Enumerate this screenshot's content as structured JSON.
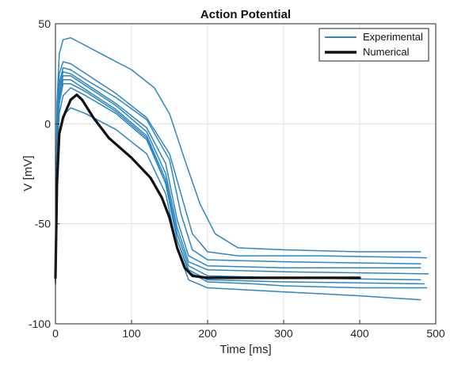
{
  "chart_data": {
    "type": "line",
    "title": "Action Potential",
    "xlabel": "Time [ms]",
    "ylabel": "V [mV]",
    "xlim": [
      0,
      500
    ],
    "ylim": [
      -100,
      50
    ],
    "xticks": [
      0,
      100,
      200,
      300,
      400,
      500
    ],
    "yticks": [
      -100,
      -50,
      0,
      50
    ],
    "xtick_labels": [
      "0",
      "100",
      "200",
      "300",
      "400",
      "500"
    ],
    "ytick_labels": [
      "-100",
      "-50",
      "0",
      "50"
    ],
    "grid": true,
    "legend_position": "top-right",
    "legend": [
      "Experimental",
      "Numerical"
    ],
    "colors": {
      "experimental": "#2E86C1",
      "numerical": "#111111"
    },
    "series": [
      {
        "name": "Experimental",
        "group": "experimental",
        "values": [
          [
            0,
            -78
          ],
          [
            2,
            10
          ],
          [
            5,
            35
          ],
          [
            10,
            42
          ],
          [
            20,
            43
          ],
          [
            30,
            41
          ],
          [
            60,
            35
          ],
          [
            100,
            27
          ],
          [
            130,
            18
          ],
          [
            150,
            5
          ],
          [
            170,
            -18
          ],
          [
            190,
            -40
          ],
          [
            210,
            -55
          ],
          [
            240,
            -62
          ],
          [
            300,
            -63
          ],
          [
            400,
            -64
          ],
          [
            480,
            -64
          ]
        ]
      },
      {
        "name": "",
        "group": "experimental",
        "values": [
          [
            0,
            -80
          ],
          [
            2,
            0
          ],
          [
            5,
            25
          ],
          [
            10,
            31
          ],
          [
            20,
            30
          ],
          [
            40,
            25
          ],
          [
            80,
            15
          ],
          [
            120,
            3
          ],
          [
            150,
            -15
          ],
          [
            165,
            -35
          ],
          [
            180,
            -55
          ],
          [
            200,
            -64
          ],
          [
            240,
            -66
          ],
          [
            350,
            -66
          ],
          [
            488,
            -67
          ]
        ]
      },
      {
        "name": "",
        "group": "experimental",
        "values": [
          [
            0,
            -78
          ],
          [
            2,
            -5
          ],
          [
            5,
            20
          ],
          [
            10,
            28
          ],
          [
            20,
            27
          ],
          [
            40,
            22
          ],
          [
            80,
            13
          ],
          [
            120,
            2
          ],
          [
            150,
            -18
          ],
          [
            165,
            -45
          ],
          [
            180,
            -63
          ],
          [
            200,
            -68
          ],
          [
            300,
            -69
          ],
          [
            480,
            -70
          ]
        ]
      },
      {
        "name": "",
        "group": "experimental",
        "values": [
          [
            0,
            -79
          ],
          [
            2,
            -5
          ],
          [
            5,
            18
          ],
          [
            10,
            26
          ],
          [
            20,
            25
          ],
          [
            40,
            20
          ],
          [
            80,
            10
          ],
          [
            120,
            -2
          ],
          [
            145,
            -20
          ],
          [
            160,
            -48
          ],
          [
            175,
            -66
          ],
          [
            200,
            -71
          ],
          [
            300,
            -72
          ],
          [
            480,
            -72
          ]
        ]
      },
      {
        "name": "",
        "group": "experimental",
        "values": [
          [
            0,
            -77
          ],
          [
            2,
            -8
          ],
          [
            5,
            15
          ],
          [
            10,
            24
          ],
          [
            20,
            24
          ],
          [
            40,
            19
          ],
          [
            80,
            9
          ],
          [
            120,
            -4
          ],
          [
            145,
            -25
          ],
          [
            160,
            -52
          ],
          [
            175,
            -69
          ],
          [
            200,
            -73
          ],
          [
            300,
            -74
          ],
          [
            490,
            -75
          ]
        ]
      },
      {
        "name": "",
        "group": "experimental",
        "values": [
          [
            0,
            -78
          ],
          [
            2,
            -10
          ],
          [
            5,
            12
          ],
          [
            10,
            22
          ],
          [
            20,
            22
          ],
          [
            40,
            17
          ],
          [
            80,
            7
          ],
          [
            120,
            -6
          ],
          [
            145,
            -28
          ],
          [
            160,
            -55
          ],
          [
            175,
            -71
          ],
          [
            200,
            -76
          ],
          [
            300,
            -77
          ],
          [
            480,
            -78
          ]
        ]
      },
      {
        "name": "",
        "group": "experimental",
        "values": [
          [
            0,
            -80
          ],
          [
            2,
            -15
          ],
          [
            5,
            5
          ],
          [
            10,
            14
          ],
          [
            20,
            18
          ],
          [
            40,
            14
          ],
          [
            80,
            5
          ],
          [
            120,
            -8
          ],
          [
            145,
            -30
          ],
          [
            160,
            -58
          ],
          [
            175,
            -73
          ],
          [
            200,
            -78
          ],
          [
            300,
            -79
          ],
          [
            485,
            -80
          ]
        ]
      },
      {
        "name": "",
        "group": "experimental",
        "values": [
          [
            0,
            -79
          ],
          [
            2,
            -20
          ],
          [
            5,
            -5
          ],
          [
            10,
            4
          ],
          [
            20,
            8
          ],
          [
            40,
            5
          ],
          [
            80,
            -3
          ],
          [
            120,
            -15
          ],
          [
            145,
            -35
          ],
          [
            160,
            -62
          ],
          [
            175,
            -78
          ],
          [
            200,
            -82
          ],
          [
            300,
            -84
          ],
          [
            400,
            -86
          ],
          [
            480,
            -88
          ]
        ]
      },
      {
        "name": "",
        "group": "experimental",
        "values": [
          [
            0,
            -78
          ],
          [
            2,
            -12
          ],
          [
            5,
            10
          ],
          [
            10,
            20
          ],
          [
            20,
            20
          ],
          [
            40,
            16
          ],
          [
            80,
            6
          ],
          [
            120,
            -7
          ],
          [
            145,
            -30
          ],
          [
            160,
            -58
          ],
          [
            175,
            -74
          ],
          [
            200,
            -79
          ],
          [
            260,
            -80
          ],
          [
            300,
            -81
          ],
          [
            400,
            -82
          ],
          [
            488,
            -82
          ]
        ]
      },
      {
        "name": "Numerical",
        "group": "numerical",
        "values": [
          [
            0,
            -77
          ],
          [
            2,
            -30
          ],
          [
            5,
            -5
          ],
          [
            10,
            3
          ],
          [
            20,
            12
          ],
          [
            28,
            14.5
          ],
          [
            35,
            12
          ],
          [
            50,
            3
          ],
          [
            70,
            -7
          ],
          [
            100,
            -17
          ],
          [
            125,
            -27
          ],
          [
            140,
            -37
          ],
          [
            150,
            -47
          ],
          [
            160,
            -62
          ],
          [
            170,
            -72
          ],
          [
            180,
            -76
          ],
          [
            200,
            -77
          ],
          [
            300,
            -77
          ],
          [
            400,
            -77
          ]
        ]
      }
    ]
  }
}
